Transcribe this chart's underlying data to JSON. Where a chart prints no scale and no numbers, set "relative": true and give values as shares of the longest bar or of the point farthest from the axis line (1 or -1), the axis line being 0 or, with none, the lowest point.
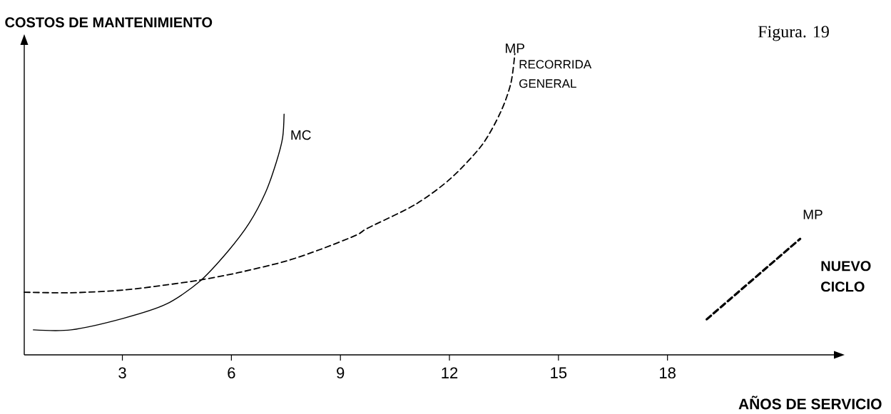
{
  "chart_data": {
    "type": "line",
    "relative": true,
    "xlabel": "AÑOS DE SERVICIO",
    "ylabel": "COSTOS DE MANTENIMIENTO",
    "xlim": [
      0.3,
      22.6
    ],
    "xticks": [
      3,
      6,
      9,
      12,
      15,
      18
    ],
    "legend": false,
    "grid": false,
    "marker": "none",
    "annotations": [
      "RECORRIDA GENERAL",
      "NUEVO CICLO",
      "Figura. 19"
    ],
    "series": [
      {
        "name": "MC",
        "color": "#000000",
        "line_style": "solid",
        "x": [
          0.55,
          1.59,
          3.02,
          4.2,
          5.12,
          5.9,
          6.49,
          6.94,
          7.24,
          7.41,
          7.45
        ],
        "values": [
          0.083,
          0.083,
          0.121,
          0.168,
          0.243,
          0.343,
          0.437,
          0.539,
          0.641,
          0.721,
          0.799
        ]
      },
      {
        "name": "MP",
        "color": "#000000",
        "line_style": "dashed",
        "x": [
          0.3,
          1.59,
          3.02,
          4.2,
          5.12,
          6.16,
          7.47,
          8.45,
          9.43,
          9.76,
          11.06,
          12.04,
          12.9,
          13.41,
          13.69,
          13.8
        ],
        "values": [
          0.208,
          0.206,
          0.215,
          0.232,
          0.248,
          0.272,
          0.31,
          0.35,
          0.397,
          0.421,
          0.499,
          0.586,
          0.697,
          0.806,
          0.901,
          1
        ]
      },
      {
        "name": "MP",
        "color": "#000000",
        "line_style": "dashed",
        "x": [
          19.08,
          21.65
        ],
        "values": [
          0.118,
          0.385
        ]
      }
    ]
  }
}
